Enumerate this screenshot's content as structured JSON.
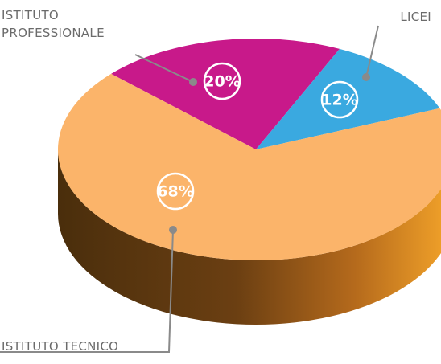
{
  "chart_data": {
    "type": "pie",
    "categories": [
      "ISTITUTO PROFESSIONALE",
      "LICEI",
      "ISTITUTO TECNICO"
    ],
    "values": [
      20,
      12,
      68
    ],
    "value_labels": [
      "20%",
      "12%",
      "68%"
    ],
    "colors": [
      "#c8198a",
      "#3aa9e0",
      "#fbb46a"
    ]
  }
}
